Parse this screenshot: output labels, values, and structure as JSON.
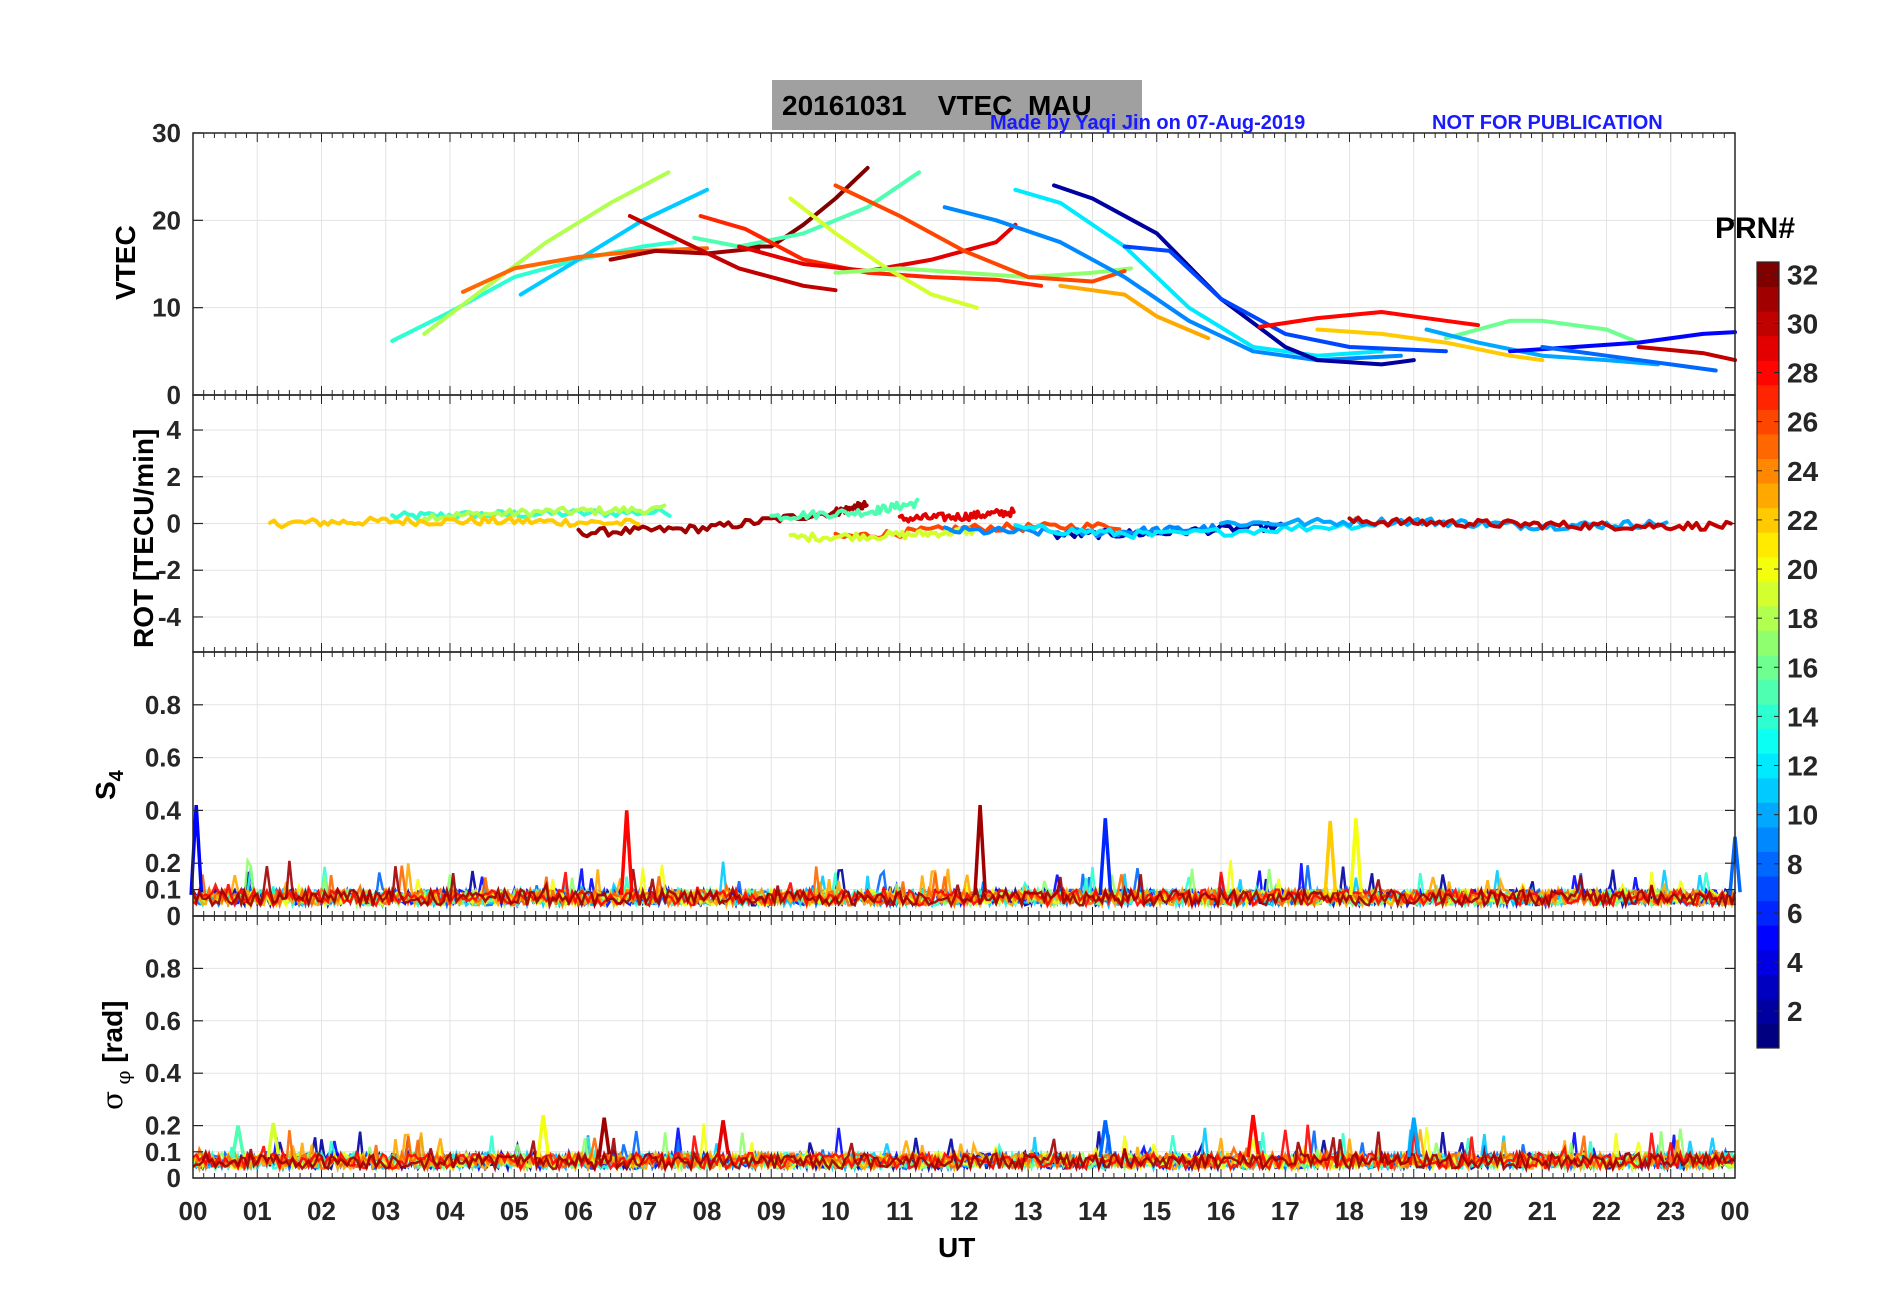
{
  "title": {
    "date": "20161031",
    "quantity": "VTEC",
    "station": "MAU",
    "credit": "Made by Yaqi Jin on 07-Aug-2019",
    "notice": "NOT FOR PUBLICATION"
  },
  "xlabel": "UT",
  "colorbar": {
    "label": "PRN#",
    "range": [
      1,
      32
    ],
    "ticks": [
      2,
      4,
      6,
      8,
      10,
      12,
      14,
      16,
      18,
      20,
      22,
      24,
      26,
      28,
      30,
      32
    ],
    "colormap": "jet"
  },
  "chart_data": [
    {
      "type": "line",
      "title": "VTEC",
      "ylabel": "VTEC",
      "xlim": [
        0,
        24
      ],
      "ylim": [
        0,
        30
      ],
      "yticks": [
        0,
        10,
        20,
        30
      ],
      "xtick_labels": [
        "00",
        "01",
        "02",
        "03",
        "04",
        "05",
        "06",
        "07",
        "08",
        "09",
        "10",
        "11",
        "12",
        "13",
        "14",
        "15",
        "16",
        "17",
        "18",
        "19",
        "20",
        "21",
        "22",
        "23",
        "00"
      ],
      "series": [
        {
          "prn": 14,
          "x": [
            3.1,
            4.0,
            5.0,
            6.0,
            7.0,
            7.5
          ],
          "y": [
            6.2,
            9.5,
            13.5,
            15.5,
            17.0,
            17.5
          ]
        },
        {
          "prn": 18,
          "x": [
            3.6,
            4.5,
            5.5,
            6.5,
            7.4
          ],
          "y": [
            7.0,
            12.0,
            17.5,
            22.0,
            25.5
          ]
        },
        {
          "prn": 11,
          "x": [
            5.1,
            6.0,
            7.0,
            8.0
          ],
          "y": [
            11.5,
            15.5,
            20.0,
            23.5
          ]
        },
        {
          "prn": 25,
          "x": [
            4.2,
            5.0,
            6.0,
            7.0,
            8.0
          ],
          "y": [
            11.8,
            14.5,
            15.8,
            16.5,
            16.8
          ]
        },
        {
          "prn": 31,
          "x": [
            6.5,
            7.2,
            8.0,
            8.8
          ],
          "y": [
            15.5,
            16.5,
            16.2,
            16.8
          ]
        },
        {
          "prn": 30,
          "x": [
            6.8,
            7.5,
            8.5,
            9.5,
            10.0
          ],
          "y": [
            20.5,
            18.0,
            14.5,
            12.5,
            12.0
          ]
        },
        {
          "prn": 32,
          "x": [
            8.5,
            9.0,
            9.5,
            10.0,
            10.5
          ],
          "y": [
            17.0,
            17.0,
            19.5,
            22.5,
            26.0
          ]
        },
        {
          "prn": 15,
          "x": [
            7.8,
            8.5,
            9.5,
            10.5,
            11.3
          ],
          "y": [
            18.0,
            17.0,
            18.5,
            21.5,
            25.5
          ]
        },
        {
          "prn": 27,
          "x": [
            7.9,
            8.6,
            9.5,
            10.5,
            11.5,
            12.5,
            13.2
          ],
          "y": [
            20.5,
            19.0,
            15.5,
            14.0,
            13.5,
            13.2,
            12.5
          ]
        },
        {
          "prn": 29,
          "x": [
            8.5,
            9.5,
            10.5,
            11.5,
            12.5,
            12.8
          ],
          "y": [
            17.0,
            15.0,
            14.2,
            15.5,
            17.5,
            19.5
          ]
        },
        {
          "prn": 19,
          "x": [
            9.3,
            10.0,
            10.8,
            11.5,
            12.2
          ],
          "y": [
            22.5,
            18.5,
            14.5,
            11.5,
            10.0
          ]
        },
        {
          "prn": 17,
          "x": [
            10.0,
            11.0,
            12.0,
            13.0,
            14.0,
            14.6
          ],
          "y": [
            14.0,
            14.5,
            14.0,
            13.5,
            14.0,
            14.5
          ]
        },
        {
          "prn": 26,
          "x": [
            10.0,
            11.0,
            12.0,
            13.0,
            14.0,
            14.5
          ],
          "y": [
            24.0,
            20.5,
            16.5,
            13.5,
            13.0,
            14.2
          ]
        },
        {
          "prn": 12,
          "x": [
            12.8,
            13.5,
            14.5,
            15.5,
            16.5,
            17.5,
            18.5
          ],
          "y": [
            23.5,
            22.0,
            17.0,
            10.0,
            5.5,
            4.5,
            5.0
          ]
        },
        {
          "prn": 9,
          "x": [
            11.7,
            12.5,
            13.5,
            14.5,
            15.5,
            16.5,
            17.5,
            18.8
          ],
          "y": [
            21.5,
            20.0,
            17.5,
            13.5,
            8.5,
            5.0,
            4.0,
            4.5
          ]
        },
        {
          "prn": 2,
          "x": [
            13.4,
            14.0,
            15.0,
            16.0,
            17.0,
            17.5,
            18.5,
            19.0
          ],
          "y": [
            24.0,
            22.5,
            18.5,
            11.0,
            5.5,
            4.0,
            3.5,
            4.0
          ]
        },
        {
          "prn": 7,
          "x": [
            14.5,
            15.2,
            16.0,
            17.0,
            18.0,
            19.5
          ],
          "y": [
            17.0,
            16.5,
            11.0,
            7.0,
            5.5,
            5.0
          ]
        },
        {
          "prn": 23,
          "x": [
            13.5,
            14.5,
            15.0,
            15.8
          ],
          "y": [
            12.5,
            11.5,
            9.0,
            6.5
          ]
        },
        {
          "prn": 28,
          "x": [
            16.6,
            17.5,
            18.5,
            19.5,
            20.0
          ],
          "y": [
            7.8,
            8.8,
            9.5,
            8.5,
            8.0
          ]
        },
        {
          "prn": 22,
          "x": [
            17.5,
            18.5,
            19.5,
            20.5,
            21.0
          ],
          "y": [
            7.5,
            7.0,
            6.0,
            4.5,
            4.0
          ]
        },
        {
          "prn": 16,
          "x": [
            19.5,
            20.5,
            21.0,
            22.0,
            22.5
          ],
          "y": [
            6.5,
            8.5,
            8.5,
            7.5,
            6.0
          ]
        },
        {
          "prn": 10,
          "x": [
            19.2,
            20.0,
            21.0,
            22.0,
            22.8
          ],
          "y": [
            7.5,
            6.0,
            4.5,
            4.0,
            3.5
          ]
        },
        {
          "prn": 5,
          "x": [
            20.5,
            21.5,
            22.5,
            23.5,
            24.0
          ],
          "y": [
            5.0,
            5.5,
            6.0,
            7.0,
            7.2
          ]
        },
        {
          "prn": 8,
          "x": [
            21.0,
            22.0,
            23.0,
            23.7
          ],
          "y": [
            5.5,
            4.5,
            3.5,
            2.8
          ]
        },
        {
          "prn": 30,
          "x": [
            22.5,
            23.5,
            24.0
          ],
          "y": [
            5.5,
            4.8,
            4.0
          ]
        }
      ]
    },
    {
      "type": "line",
      "title": "ROT",
      "ylabel": "ROT [TECU/min]",
      "xlim": [
        0,
        24
      ],
      "ylim": [
        -5.5,
        5.5
      ],
      "yticks": [
        -4,
        -2,
        0,
        2,
        4
      ],
      "note": "Rate of TEC mostly within about ±0.8 TECU/min throughout the day",
      "series": [
        {
          "prn": 14,
          "x": [
            3.1,
            5.0,
            7.5
          ],
          "y": [
            0.3,
            0.4,
            0.5
          ]
        },
        {
          "prn": 18,
          "x": [
            3.6,
            5.5,
            7.4
          ],
          "y": [
            0.3,
            0.5,
            0.6
          ]
        },
        {
          "prn": 22,
          "x": [
            1.2,
            3.0,
            5.0,
            7.0
          ],
          "y": [
            0.0,
            0.1,
            0.1,
            0.0
          ]
        },
        {
          "prn": 31,
          "x": [
            6.0,
            8.0,
            10.0,
            10.5
          ],
          "y": [
            -0.4,
            -0.2,
            0.5,
            0.8
          ]
        },
        {
          "prn": 26,
          "x": [
            10.0,
            12.0,
            14.5
          ],
          "y": [
            -0.6,
            -0.2,
            -0.1
          ]
        },
        {
          "prn": 15,
          "x": [
            9.0,
            10.5,
            11.3
          ],
          "y": [
            0.3,
            0.5,
            0.9
          ]
        },
        {
          "prn": 29,
          "x": [
            11.0,
            12.0,
            12.8
          ],
          "y": [
            0.2,
            0.3,
            0.5
          ]
        },
        {
          "prn": 19,
          "x": [
            9.3,
            11.0,
            12.2
          ],
          "y": [
            -0.6,
            -0.5,
            -0.3
          ]
        },
        {
          "prn": 2,
          "x": [
            13.4,
            15.0,
            17.0
          ],
          "y": [
            -0.5,
            -0.4,
            -0.1
          ]
        },
        {
          "prn": 9,
          "x": [
            11.7,
            14.0,
            16.0
          ],
          "y": [
            -0.3,
            -0.4,
            -0.2
          ]
        },
        {
          "prn": 12,
          "x": [
            12.8,
            15.0,
            18.5
          ],
          "y": [
            -0.2,
            -0.5,
            0.0
          ]
        },
        {
          "prn": 10,
          "x": [
            16.0,
            19.0,
            21.0,
            23.0
          ],
          "y": [
            0.0,
            0.1,
            -0.1,
            0.0
          ]
        },
        {
          "prn": 30,
          "x": [
            18.0,
            20.0,
            22.0,
            24.0
          ],
          "y": [
            0.1,
            0.0,
            -0.1,
            -0.1
          ]
        }
      ]
    },
    {
      "type": "line",
      "title": "S4",
      "ylabel": "S4",
      "xlim": [
        0,
        24
      ],
      "ylim": [
        0,
        1
      ],
      "yticks": [
        0,
        0.1,
        0.2,
        0.4,
        0.6,
        0.8
      ],
      "note": "Amplitude scintillation index; background about 0.05-0.15 with spikes",
      "peaks": [
        {
          "x": 0.05,
          "y": 0.42,
          "prn": 5
        },
        {
          "x": 6.75,
          "y": 0.4,
          "prn": 28
        },
        {
          "x": 12.25,
          "y": 0.42,
          "prn": 31
        },
        {
          "x": 14.2,
          "y": 0.37,
          "prn": 6
        },
        {
          "x": 17.7,
          "y": 0.36,
          "prn": 22
        },
        {
          "x": 18.1,
          "y": 0.37,
          "prn": 20
        },
        {
          "x": 24.0,
          "y": 0.3,
          "prn": 8
        }
      ]
    },
    {
      "type": "line",
      "title": "sigma phi",
      "ylabel": "σ_φ [rad]",
      "xlim": [
        0,
        24
      ],
      "ylim": [
        0,
        1
      ],
      "yticks": [
        0,
        0.1,
        0.2,
        0.4,
        0.6,
        0.8
      ],
      "note": "Phase scintillation index; background about 0.05-0.1 with spikes",
      "peaks": [
        {
          "x": 0.7,
          "y": 0.2,
          "prn": 15
        },
        {
          "x": 1.25,
          "y": 0.21,
          "prn": 19
        },
        {
          "x": 5.45,
          "y": 0.24,
          "prn": 20
        },
        {
          "x": 6.4,
          "y": 0.23,
          "prn": 31
        },
        {
          "x": 8.25,
          "y": 0.22,
          "prn": 29
        },
        {
          "x": 16.5,
          "y": 0.24,
          "prn": 28
        },
        {
          "x": 19.0,
          "y": 0.23,
          "prn": 10
        },
        {
          "x": 14.2,
          "y": 0.22,
          "prn": 8
        }
      ]
    }
  ]
}
